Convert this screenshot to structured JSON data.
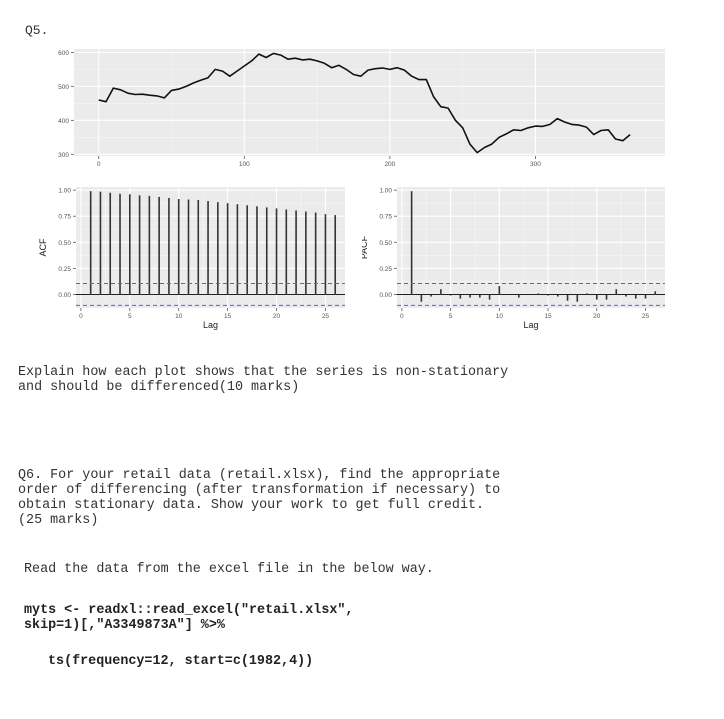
{
  "q5": {
    "label": "Q5.",
    "question": "Explain how each plot shows that the series is non-stationary\nand should be differenced(10 marks)"
  },
  "q6": {
    "question": "Q6. For your retail data (retail.xlsx), find the appropriate\norder of differencing (after transformation if necessary) to\nobtain stationary data. Show your work to get full credit.\n(25 marks)",
    "instruction": "Read the data from the excel file in the below way.",
    "code_line1": "myts <- readxl::read_excel(\"retail.xlsx\",\nskip=1)[,\"A3349873A\"] %>%",
    "code_line2": "ts(frequency=12, start=c(1982,4))"
  },
  "chart_data": [
    {
      "type": "line",
      "title": "",
      "xlabel": "",
      "ylabel": "",
      "xlim": [
        -17,
        389
      ],
      "ylim": [
        295,
        610
      ],
      "xticks": [
        0,
        100,
        200,
        300
      ],
      "yticks": [
        300,
        400,
        500,
        600
      ],
      "grid": true,
      "x": [
        0,
        5,
        10,
        15,
        20,
        25,
        30,
        35,
        40,
        45,
        50,
        55,
        60,
        65,
        70,
        75,
        80,
        85,
        90,
        95,
        100,
        105,
        110,
        115,
        120,
        125,
        130,
        135,
        140,
        145,
        150,
        155,
        160,
        165,
        170,
        175,
        180,
        185,
        190,
        195,
        200,
        205,
        210,
        215,
        220,
        225,
        230,
        235,
        240,
        245,
        250,
        255,
        260,
        265,
        270,
        275,
        280,
        285,
        290,
        295,
        300,
        305,
        310,
        315,
        320,
        325,
        330,
        335,
        340,
        345,
        350,
        355,
        360,
        365
      ],
      "values": [
        460,
        455,
        495,
        490,
        480,
        476,
        477,
        474,
        472,
        466,
        488,
        492,
        500,
        510,
        518,
        525,
        550,
        545,
        530,
        545,
        560,
        575,
        595,
        585,
        597,
        592,
        580,
        583,
        578,
        580,
        575,
        568,
        555,
        562,
        550,
        535,
        530,
        548,
        552,
        554,
        550,
        555,
        548,
        530,
        520,
        520,
        470,
        440,
        436,
        400,
        378,
        330,
        305,
        320,
        330,
        350,
        360,
        372,
        370,
        378,
        383,
        382,
        388,
        405,
        395,
        388,
        386,
        380,
        358,
        370,
        372,
        345,
        340,
        358
      ]
    },
    {
      "type": "bar",
      "title": "",
      "xlabel": "Lag",
      "ylabel": "ACF",
      "xlim": [
        -0.5,
        27
      ],
      "ylim": [
        -0.13,
        1.03
      ],
      "xticks": [
        0,
        5,
        10,
        15,
        20,
        25
      ],
      "yticks": [
        0.0,
        0.25,
        0.5,
        0.75,
        1.0
      ],
      "confidence_bound": 0.105,
      "categories": [
        1,
        2,
        3,
        4,
        5,
        6,
        7,
        8,
        9,
        10,
        11,
        12,
        13,
        14,
        15,
        16,
        17,
        18,
        19,
        20,
        21,
        22,
        23,
        24,
        25,
        26
      ],
      "values": [
        0.99,
        0.985,
        0.975,
        0.965,
        0.96,
        0.95,
        0.945,
        0.935,
        0.925,
        0.915,
        0.91,
        0.905,
        0.895,
        0.885,
        0.875,
        0.865,
        0.855,
        0.845,
        0.835,
        0.825,
        0.815,
        0.805,
        0.795,
        0.785,
        0.77,
        0.76
      ]
    },
    {
      "type": "bar",
      "title": "",
      "xlabel": "Lag",
      "ylabel": "PACF",
      "xlim": [
        -0.5,
        27
      ],
      "ylim": [
        -0.13,
        1.03
      ],
      "xticks": [
        0,
        5,
        10,
        15,
        20,
        25
      ],
      "yticks": [
        0.0,
        0.25,
        0.5,
        0.75,
        1.0
      ],
      "confidence_bound": 0.105,
      "categories": [
        1,
        2,
        3,
        4,
        5,
        6,
        7,
        8,
        9,
        10,
        11,
        12,
        13,
        14,
        15,
        16,
        17,
        18,
        19,
        20,
        21,
        22,
        23,
        24,
        25,
        26
      ],
      "values": [
        0.99,
        -0.07,
        -0.02,
        0.05,
        -0.01,
        -0.04,
        -0.03,
        -0.03,
        -0.05,
        0.08,
        -0.005,
        -0.03,
        0.0,
        0.01,
        -0.01,
        -0.02,
        -0.06,
        -0.07,
        0.01,
        -0.05,
        -0.05,
        0.05,
        -0.02,
        -0.04,
        -0.04,
        0.03
      ]
    }
  ]
}
